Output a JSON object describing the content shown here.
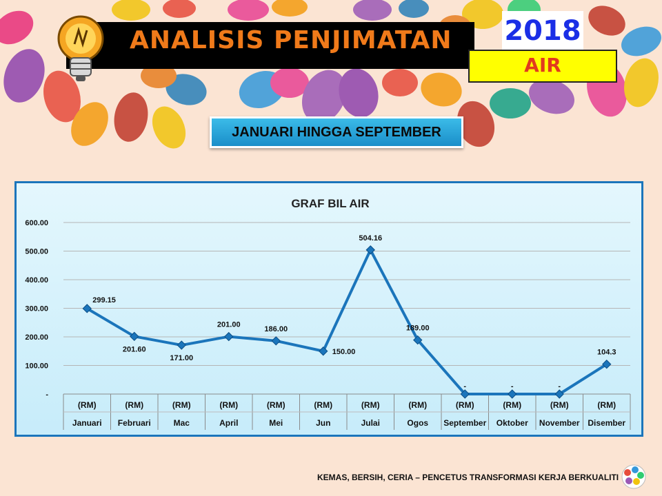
{
  "header": {
    "title": "ANALISIS PENJIMATAN",
    "year": "2018",
    "subject": "AIR",
    "period": "JANUARI HINGGA SEPTEMBER"
  },
  "footer": {
    "tagline": "KEMAS, BERSIH, CERIA – PENCETUS TRANSFORMASI KERJA BERKUALITI"
  },
  "icons": {
    "bulb": "lightbulb-icon",
    "logo": "organization-logo-icon"
  },
  "colors": {
    "line": "#1b75bb",
    "title_text": "#f07a1a",
    "year_text": "#1a2ee6",
    "subject_box": "#ffff00",
    "subject_text": "#e23a1e"
  },
  "chart_data": {
    "type": "line",
    "title": "GRAF BIL AIR",
    "unit_row": "(RM)",
    "categories": [
      "Januari",
      "Februari",
      "Mac",
      "April",
      "Mei",
      "Jun",
      "Julai",
      "Ogos",
      "September",
      "Oktober",
      "November",
      "Disember"
    ],
    "series": [
      {
        "values": [
          299.15,
          201.6,
          171.0,
          201.0,
          186.0,
          150.0,
          504.16,
          189.0,
          0,
          0,
          0,
          104.3
        ]
      }
    ],
    "data_labels": [
      "299.15",
      "201.60",
      "171.00",
      "201.00",
      "186.00",
      "150.00",
      "504.16",
      "189.00",
      "-",
      "-",
      "-",
      "104.3"
    ],
    "yticks": [
      "-",
      "100.00",
      "200.00",
      "300.00",
      "400.00",
      "500.00",
      "600.00"
    ],
    "ylim": [
      0,
      600
    ],
    "grid": true,
    "legend": "none"
  }
}
